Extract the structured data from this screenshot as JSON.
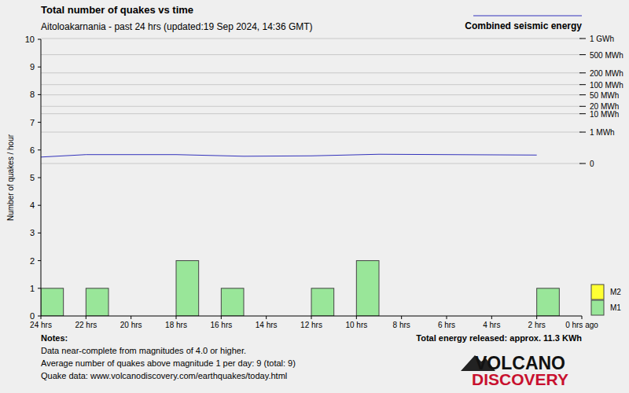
{
  "chart_data": {
    "type": "histogram",
    "title": "Total number of quakes vs time",
    "subtitle": "Aitoloakarnania - past 24 hrs (updated:19 Sep 2024, 14:36 GMT)",
    "y_label": "Number of quakes / hour",
    "bins": [
      24,
      23,
      22,
      21,
      20,
      19,
      18,
      17,
      16,
      15,
      14,
      13,
      12,
      11,
      10,
      9,
      8,
      7,
      6,
      5,
      4,
      3,
      2,
      1,
      0
    ],
    "xlim": [
      24,
      0
    ],
    "xticks": [
      {
        "value": 24,
        "label": "24 hrs"
      },
      {
        "value": 22,
        "label": "22 hrs"
      },
      {
        "value": 20,
        "label": "20 hrs"
      },
      {
        "value": 18,
        "label": "18 hrs"
      },
      {
        "value": 16,
        "label": "16 hrs"
      },
      {
        "value": 14,
        "label": "14 hrs"
      },
      {
        "value": 12,
        "label": "12 hrs"
      },
      {
        "value": 10,
        "label": "10 hrs"
      },
      {
        "value": 8,
        "label": "8 hrs"
      },
      {
        "value": 6,
        "label": "6 hrs"
      },
      {
        "value": 4,
        "label": "4 hrs"
      },
      {
        "value": 2,
        "label": "2 hrs"
      },
      {
        "value": 0,
        "label": "0 hrs ago"
      }
    ],
    "ylim": [
      0,
      10
    ],
    "yticks": [
      0,
      1,
      2,
      3,
      4,
      5,
      6,
      7,
      8,
      9,
      10
    ],
    "y2lim": [
      0,
      1000
    ],
    "y2ticks": [
      0,
      {
        "value": 1,
        "label": "1 MWh"
      },
      {
        "value": 10,
        "label": "10 MWh"
      },
      {
        "value": 20,
        "label": "20 MWh"
      },
      {
        "value": 50,
        "label": "50 MWh"
      },
      {
        "value": 100,
        "label": "100 MWh"
      },
      {
        "value": 200,
        "label": "200 MWh"
      },
      {
        "value": 500,
        "label": "500 MWh"
      },
      {
        "value": 1000,
        "label": "1 GWh"
      }
    ],
    "stacked": true,
    "grid": true,
    "legend": "right",
    "series": [
      {
        "name": "M2",
        "type": "bar",
        "color": "#ffff33",
        "values": [
          0,
          0,
          0,
          0,
          0,
          0,
          0,
          0,
          0,
          0,
          0,
          0,
          0,
          0,
          0,
          0,
          0,
          0,
          0,
          0,
          0,
          0,
          0,
          0
        ]
      },
      {
        "name": "M1",
        "type": "bar",
        "color": "#99e699",
        "values": [
          1,
          0,
          1,
          0,
          0,
          0,
          2,
          0,
          1,
          0,
          0,
          0,
          1,
          0,
          2,
          0,
          0,
          0,
          0,
          0,
          0,
          0,
          1,
          0
        ]
      },
      {
        "name": "Combined seismic energy",
        "type": "line",
        "axis": "y2",
        "color": "#3333bb",
        "x": [
          24,
          22,
          18,
          15,
          12,
          9,
          2
        ],
        "values": [
          0.00036,
          0.0018,
          0.0018,
          0.00065,
          0.00086,
          0.0022,
          0.0014
        ]
      }
    ],
    "notes": {
      "heading": "Notes:",
      "lines": [
        "Data near-complete from magnitudes of 4.0 or higher.",
        "Average number of quakes above magnitude 1 per day: 9 (total: 9)",
        "Quake data: www.volcanodiscovery.com/earthquakes/today.html"
      ]
    },
    "total_energy": "Total energy released: approx. 11.3 KWh",
    "logo": [
      "VOLCANO",
      "DISCOVERY"
    ]
  }
}
